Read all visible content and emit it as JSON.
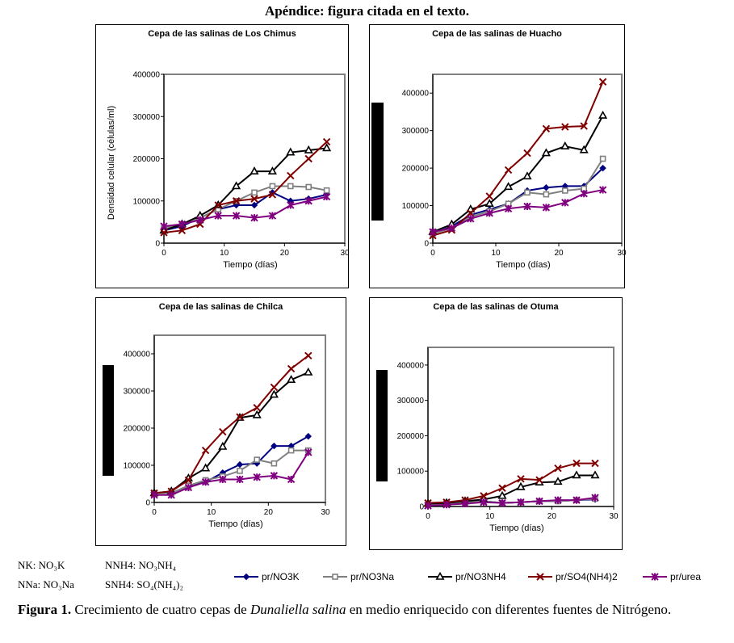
{
  "header": "Apéndice: figura citada en el texto.",
  "series": [
    {
      "key": "nk",
      "name": "pr/NO3K",
      "color": "#000080",
      "marker": "diamond"
    },
    {
      "key": "nna",
      "name": "pr/NO3Na",
      "color": "#808080",
      "marker": "square"
    },
    {
      "key": "nnh4",
      "name": "pr/NO3NH4",
      "color": "#000000",
      "marker": "triangle"
    },
    {
      "key": "snh4",
      "name": "pr/SO4(NH4)2",
      "color": "#800000",
      "marker": "x"
    },
    {
      "key": "urea",
      "name": "pr/urea",
      "color": "#800080",
      "marker": "star"
    }
  ],
  "chart_data": [
    {
      "type": "line",
      "title": "Cepa de las salinas de Los Chimus",
      "xlabel": "Tiempo (días)",
      "ylabel": "Densidad celular (células/ml)",
      "xlim": [
        0,
        30
      ],
      "ylim": [
        0,
        400000
      ],
      "xticks": [
        "0",
        "10",
        "20",
        "30"
      ],
      "yticks": [
        "0",
        "100000",
        "200000",
        "300000",
        "400000"
      ],
      "grid": false,
      "x": [
        0,
        3,
        6,
        9,
        12,
        15,
        18,
        21,
        24,
        27
      ],
      "series": [
        {
          "name": "pr/NO3K",
          "values": [
            30000,
            40000,
            60000,
            80000,
            90000,
            90000,
            120000,
            100000,
            105000,
            115000
          ]
        },
        {
          "name": "pr/NO3Na",
          "values": [
            35000,
            45000,
            60000,
            80000,
            100000,
            120000,
            135000,
            135000,
            133000,
            125000
          ]
        },
        {
          "name": "pr/NO3NH4",
          "values": [
            30000,
            45000,
            65000,
            90000,
            135000,
            170000,
            170000,
            215000,
            220000,
            225000
          ]
        },
        {
          "name": "pr/SO4(NH4)2",
          "values": [
            25000,
            30000,
            45000,
            90000,
            100000,
            105000,
            115000,
            160000,
            200000,
            240000
          ]
        },
        {
          "name": "pr/urea",
          "values": [
            40000,
            45000,
            55000,
            65000,
            65000,
            60000,
            65000,
            90000,
            100000,
            110000
          ]
        }
      ]
    },
    {
      "type": "line",
      "title": "Cepa de las salinas de Huacho",
      "xlabel": "Tiempo (días)",
      "ylabel": "",
      "xlim": [
        0,
        30
      ],
      "ylim": [
        0,
        450000
      ],
      "xticks": [
        "0",
        "10",
        "20",
        "30"
      ],
      "yticks": [
        "0",
        "100000",
        "200000",
        "300000",
        "400000"
      ],
      "grid": false,
      "x": [
        0,
        3,
        6,
        9,
        12,
        15,
        18,
        21,
        24,
        27
      ],
      "series": [
        {
          "name": "pr/NO3K",
          "values": [
            25000,
            45000,
            75000,
            90000,
            105000,
            140000,
            148000,
            152000,
            152000,
            200000
          ]
        },
        {
          "name": "pr/NO3Na",
          "values": [
            25000,
            40000,
            70000,
            85000,
            105000,
            135000,
            130000,
            140000,
            145000,
            225000
          ]
        },
        {
          "name": "pr/NO3NH4",
          "values": [
            30000,
            50000,
            90000,
            105000,
            150000,
            178000,
            240000,
            258000,
            248000,
            340000
          ]
        },
        {
          "name": "pr/SO4(NH4)2",
          "values": [
            20000,
            35000,
            80000,
            125000,
            195000,
            240000,
            305000,
            310000,
            312000,
            430000
          ]
        },
        {
          "name": "pr/urea",
          "values": [
            30000,
            40000,
            65000,
            80000,
            92000,
            98000,
            95000,
            108000,
            132000,
            142000
          ]
        }
      ]
    },
    {
      "type": "line",
      "title": "Cepa de las salinas de Chilca",
      "xlabel": "Tiempo (días)",
      "ylabel": "",
      "xlim": [
        0,
        30
      ],
      "ylim": [
        0,
        450000
      ],
      "xticks": [
        "0",
        "10",
        "20",
        "30"
      ],
      "yticks": [
        "0",
        "100000",
        "200000",
        "300000",
        "400000"
      ],
      "grid": false,
      "x": [
        0,
        3,
        6,
        9,
        12,
        15,
        18,
        21,
        24,
        27
      ],
      "series": [
        {
          "name": "pr/NO3K",
          "values": [
            25000,
            25000,
            45000,
            55000,
            80000,
            102000,
            105000,
            152000,
            152000,
            178000
          ]
        },
        {
          "name": "pr/NO3Na",
          "values": [
            25000,
            25000,
            45000,
            60000,
            70000,
            85000,
            115000,
            105000,
            140000,
            140000
          ]
        },
        {
          "name": "pr/NO3NH4",
          "values": [
            25000,
            30000,
            65000,
            92000,
            150000,
            228000,
            235000,
            290000,
            330000,
            350000
          ]
        },
        {
          "name": "pr/SO4(NH4)2",
          "values": [
            25000,
            30000,
            60000,
            140000,
            190000,
            230000,
            255000,
            310000,
            360000,
            395000
          ]
        },
        {
          "name": "pr/urea",
          "values": [
            20000,
            20000,
            40000,
            55000,
            62000,
            62000,
            68000,
            72000,
            62000,
            135000
          ]
        }
      ]
    },
    {
      "type": "line",
      "title": "Cepa de las salinas de Otuma",
      "xlabel": "Tiempo (días)",
      "ylabel": "",
      "xlim": [
        0,
        30
      ],
      "ylim": [
        0,
        450000
      ],
      "xticks": [
        "0",
        "10",
        "20",
        "30"
      ],
      "yticks": [
        "0",
        "100000",
        "200000",
        "300000",
        "400000"
      ],
      "grid": false,
      "x": [
        0,
        3,
        6,
        9,
        12,
        15,
        18,
        21,
        24,
        27
      ],
      "series": [
        {
          "name": "pr/NO3K",
          "values": [
            5000,
            8000,
            12000,
            15000,
            10000,
            12000,
            15000,
            15000,
            18000,
            20000
          ]
        },
        {
          "name": "pr/NO3Na",
          "values": [
            5000,
            8000,
            12000,
            15000,
            10000,
            12000,
            15000,
            15000,
            18000,
            22000
          ]
        },
        {
          "name": "pr/NO3NH4",
          "values": [
            8000,
            10000,
            15000,
            20000,
            30000,
            55000,
            68000,
            70000,
            88000,
            88000
          ]
        },
        {
          "name": "pr/SO4(NH4)2",
          "values": [
            10000,
            12000,
            18000,
            30000,
            52000,
            78000,
            75000,
            108000,
            122000,
            122000
          ]
        },
        {
          "name": "pr/urea",
          "values": [
            2000,
            5000,
            8000,
            12000,
            10000,
            12000,
            15000,
            18000,
            18000,
            25000
          ]
        }
      ]
    }
  ],
  "notes": {
    "nk": "NK: NO₃K",
    "nna": "NNa: NO₃Na",
    "nnh4": "NNH4: NO₃NH₄",
    "snh4": "SNH4: SO₄(NH₄)₂"
  },
  "caption": {
    "label": "Figura 1.",
    "text1": " Crecimiento de cuatro cepas de ",
    "species": "Dunaliella salina",
    "text2": " en medio enriquecido con diferentes fuentes de Nitrógeno."
  }
}
